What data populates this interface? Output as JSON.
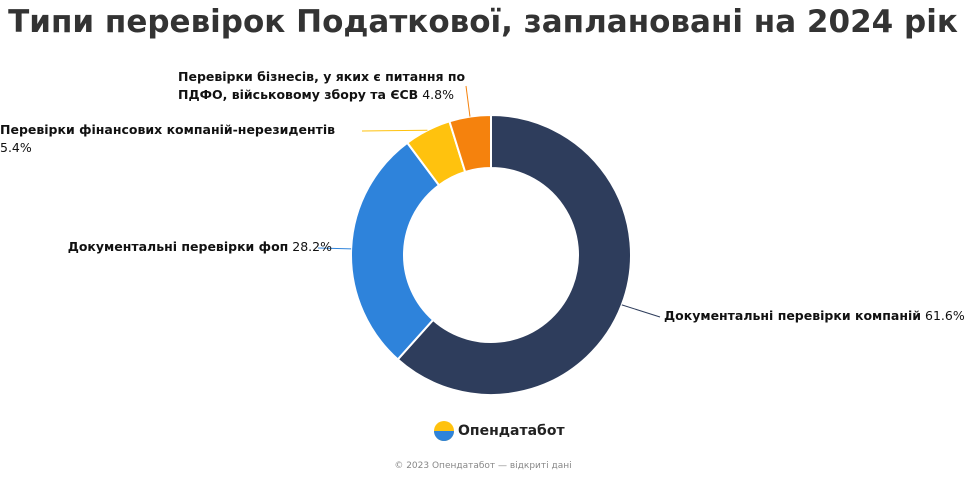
{
  "chart_data": {
    "type": "donut",
    "title": "Типи перевірок Податкової, заплановані на 2024 рік",
    "categories": [
      "Документальні перевірки компаній",
      "Документальні перевірки фоп",
      "Перевірки фінансових компаній-нерезидентів",
      "Перевірки бізнесів, у яких є питання по ПДФО, військовому збору та ЄСВ"
    ],
    "values": [
      61.6,
      28.2,
      5.4,
      4.8
    ],
    "value_labels": [
      "61.6%",
      "28.2%",
      "5.4%",
      "4.8%"
    ],
    "colors": [
      "#2e3d5c",
      "#2e83db",
      "#ffc20e",
      "#f5820d"
    ],
    "brand": "Опендатабот",
    "source": "© 2023 Опендатабот — відкриті дані"
  }
}
